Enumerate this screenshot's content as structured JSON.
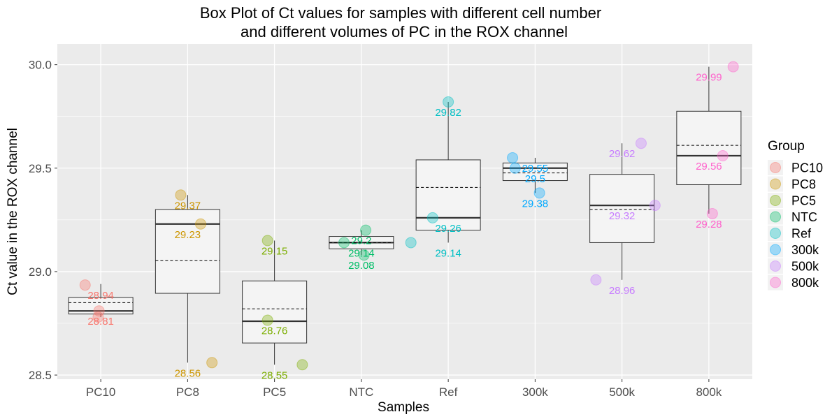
{
  "chart_data": {
    "type": "box",
    "title_lines": [
      "Box Plot of Ct values for samples with different cell number",
      "and different volumes of PC in the ROX channel"
    ],
    "xlabel": "Samples",
    "ylabel": "Ct value in the ROX channel",
    "ylim": [
      28.48,
      30.1
    ],
    "yticks": [
      28.5,
      29.0,
      29.5,
      30.0
    ],
    "ytick_labels": [
      "28.5",
      "29.0",
      "29.5",
      "30.0"
    ],
    "categories": [
      "PC10",
      "PC8",
      "PC5",
      "NTC",
      "Ref",
      "300k",
      "500k",
      "800k"
    ],
    "legend": {
      "title": "Group",
      "position": "right"
    },
    "grid": true,
    "colors": {
      "PC10": "#F8766D",
      "PC8": "#CD9600",
      "PC5": "#7CAE00",
      "NTC": "#00BE67",
      "Ref": "#00BFC4",
      "300k": "#00A9FF",
      "500k": "#C77CFF",
      "800k": "#FF61CC"
    },
    "boxes": [
      {
        "group": "PC10",
        "q1": 28.795,
        "median": 28.81,
        "q3": 28.875,
        "mean": 28.85,
        "whisker_low": 28.78,
        "whisker_high": 28.94
      },
      {
        "group": "PC8",
        "q1": 28.895,
        "median": 29.23,
        "q3": 29.3,
        "mean": 29.053,
        "whisker_low": 28.56,
        "whisker_high": 29.37
      },
      {
        "group": "PC5",
        "q1": 28.655,
        "median": 28.76,
        "q3": 28.955,
        "mean": 28.82,
        "whisker_low": 28.55,
        "whisker_high": 29.15
      },
      {
        "group": "NTC",
        "q1": 29.11,
        "median": 29.14,
        "q3": 29.17,
        "mean": 29.14,
        "whisker_low": 29.08,
        "whisker_high": 29.2
      },
      {
        "group": "Ref",
        "q1": 29.2,
        "median": 29.26,
        "q3": 29.54,
        "mean": 29.407,
        "whisker_low": 29.14,
        "whisker_high": 29.82
      },
      {
        "group": "300k",
        "q1": 29.44,
        "median": 29.5,
        "q3": 29.525,
        "mean": 29.477,
        "whisker_low": 29.38,
        "whisker_high": 29.55
      },
      {
        "group": "500k",
        "q1": 29.14,
        "median": 29.32,
        "q3": 29.47,
        "mean": 29.3,
        "whisker_low": 28.96,
        "whisker_high": 29.62
      },
      {
        "group": "800k",
        "q1": 29.42,
        "median": 29.56,
        "q3": 29.775,
        "mean": 29.61,
        "whisker_low": 29.28,
        "whisker_high": 29.99
      }
    ],
    "points": [
      {
        "group": "PC10",
        "dx": -0.18,
        "y": 28.935,
        "label": "28.94",
        "show_label": true
      },
      {
        "group": "PC10",
        "dx": -0.02,
        "y": 28.81,
        "label": "28.81",
        "show_label": true
      },
      {
        "group": "PC10",
        "dx": -0.03,
        "y": 28.78,
        "label": "",
        "show_label": false
      },
      {
        "group": "PC8",
        "dx": -0.08,
        "y": 29.37,
        "label": "29.37",
        "show_label": true
      },
      {
        "group": "PC8",
        "dx": 0.15,
        "y": 29.23,
        "label": "29.23",
        "show_label": true
      },
      {
        "group": "PC8",
        "dx": 0.28,
        "y": 28.56,
        "label": "28.56",
        "show_label": true
      },
      {
        "group": "PC5",
        "dx": -0.08,
        "y": 29.15,
        "label": "29.15",
        "show_label": true
      },
      {
        "group": "PC5",
        "dx": -0.08,
        "y": 28.765,
        "label": "28.76",
        "show_label": true
      },
      {
        "group": "PC5",
        "dx": 0.32,
        "y": 28.55,
        "label": "28.55",
        "show_label": true
      },
      {
        "group": "NTC",
        "dx": 0.05,
        "y": 29.2,
        "label": "29.2",
        "show_label": true
      },
      {
        "group": "NTC",
        "dx": -0.2,
        "y": 29.14,
        "label": "29.14",
        "show_label": true
      },
      {
        "group": "NTC",
        "dx": 0.03,
        "y": 29.08,
        "label": "29.08",
        "show_label": true
      },
      {
        "group": "Ref",
        "dx": 0.0,
        "y": 29.82,
        "label": "29.82",
        "show_label": true
      },
      {
        "group": "Ref",
        "dx": -0.18,
        "y": 29.26,
        "label": "29.26",
        "show_label": true
      },
      {
        "group": "Ref",
        "dx": -0.43,
        "y": 29.14,
        "label": "29.14",
        "show_label": true
      },
      {
        "group": "300k",
        "dx": -0.26,
        "y": 29.55,
        "label": "29.55",
        "show_label": true
      },
      {
        "group": "300k",
        "dx": -0.23,
        "y": 29.5,
        "label": "29.5",
        "show_label": true
      },
      {
        "group": "300k",
        "dx": 0.05,
        "y": 29.38,
        "label": "29.38",
        "show_label": true
      },
      {
        "group": "500k",
        "dx": 0.22,
        "y": 29.62,
        "label": "29.62",
        "show_label": true
      },
      {
        "group": "500k",
        "dx": 0.38,
        "y": 29.32,
        "label": "29.32",
        "show_label": true
      },
      {
        "group": "500k",
        "dx": -0.3,
        "y": 28.96,
        "label": "28.96",
        "show_label": true
      },
      {
        "group": "800k",
        "dx": 0.28,
        "y": 29.99,
        "label": "29.99",
        "show_label": true
      },
      {
        "group": "800k",
        "dx": 0.16,
        "y": 29.56,
        "label": "29.56",
        "show_label": true
      },
      {
        "group": "800k",
        "dx": 0.04,
        "y": 29.28,
        "label": "29.28",
        "show_label": true
      }
    ]
  }
}
